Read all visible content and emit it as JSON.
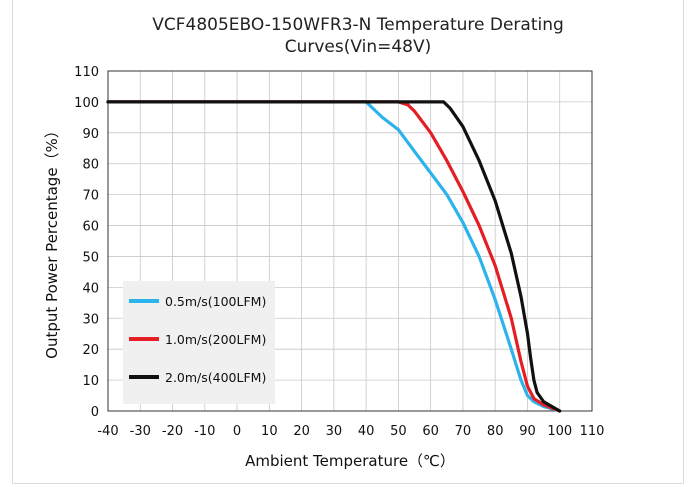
{
  "chart_data": {
    "type": "line",
    "title_lines": [
      "VCF4805EBO-150WFR3-N Temperature Derating",
      "Curves(Vin=48V)"
    ],
    "xlabel": "Ambient Temperature（℃）",
    "ylabel": "Output Power Percentage（%）",
    "xlim": [
      -40,
      110
    ],
    "ylim": [
      0,
      110
    ],
    "xticks": [
      "-40",
      "-30",
      "-20",
      "-10",
      "0",
      "10",
      "20",
      "30",
      "40",
      "50",
      "60",
      "70",
      "80",
      "90",
      "100",
      "110"
    ],
    "yticks": [
      "0",
      "10",
      "20",
      "30",
      "40",
      "50",
      "60",
      "70",
      "80",
      "90",
      "100",
      "110"
    ],
    "grid": true,
    "legend_position": "bottom-left",
    "series": [
      {
        "name": "0.5m/s(100LFM)",
        "color": "#2db3ec",
        "x": [
          -40,
          40,
          42,
          45,
          50,
          55,
          60,
          65,
          70,
          75,
          80,
          85,
          88,
          90,
          92,
          95,
          100
        ],
        "y": [
          100,
          100,
          98,
          95,
          91,
          84,
          77,
          70,
          61,
          50,
          36,
          20,
          10,
          5,
          3,
          1.5,
          0
        ]
      },
      {
        "name": "1.0m/s(200LFM)",
        "color": "#e41e24",
        "x": [
          -40,
          50,
          53,
          55,
          60,
          65,
          70,
          75,
          80,
          85,
          88,
          90,
          92,
          95,
          100
        ],
        "y": [
          100,
          100,
          99,
          97,
          90,
          81,
          71,
          60,
          47,
          30,
          16,
          8,
          4,
          2,
          0
        ]
      },
      {
        "name": "2.0m/s(400LFM)",
        "color": "#111111",
        "x": [
          -40,
          62,
          64,
          66,
          70,
          75,
          80,
          85,
          88,
          90,
          91,
          92,
          93,
          95,
          100
        ],
        "y": [
          100,
          100,
          100,
          98,
          92,
          81,
          68,
          51,
          37,
          25,
          17,
          10,
          6,
          3,
          0
        ]
      }
    ]
  }
}
